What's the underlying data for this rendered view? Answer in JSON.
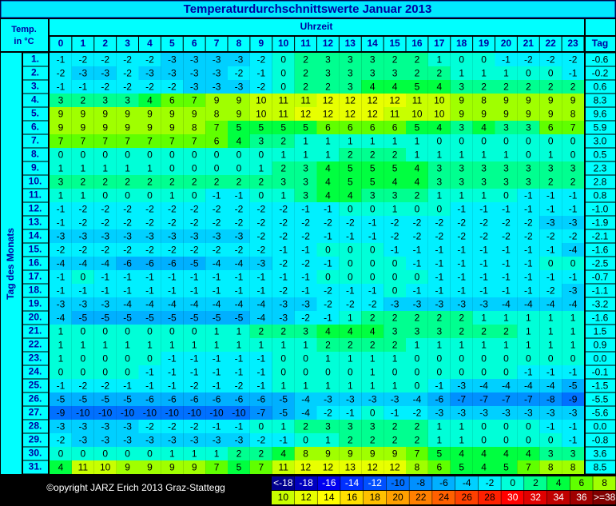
{
  "header": {
    "title": "Temperaturdurchschnittswerte Januar 2013",
    "corner": [
      "Temp.",
      "in °C"
    ],
    "hours_label": "Uhrzeit",
    "day_label": "Tag des Monats",
    "tag_label": "Tag"
  },
  "hours": [
    0,
    1,
    2,
    3,
    4,
    5,
    6,
    7,
    8,
    9,
    10,
    11,
    12,
    13,
    14,
    15,
    16,
    17,
    18,
    19,
    20,
    21,
    22,
    23
  ],
  "table": {
    "rows": [
      {
        "day": "1.",
        "values": [
          -1,
          -2,
          -2,
          -2,
          -2,
          -3,
          -3,
          -3,
          -3,
          -2,
          0,
          2,
          3,
          3,
          3,
          2,
          2,
          1,
          0,
          0,
          -1,
          -2,
          -2,
          -2
        ],
        "tag": "-0.6"
      },
      {
        "day": "2.",
        "values": [
          -2,
          -3,
          -3,
          -2,
          -3,
          -3,
          -3,
          -3,
          -2,
          -1,
          0,
          2,
          3,
          3,
          3,
          3,
          2,
          2,
          1,
          1,
          1,
          0,
          0,
          -1
        ],
        "tag": "-0.2"
      },
      {
        "day": "3.",
        "values": [
          -1,
          -1,
          -2,
          -2,
          -2,
          -2,
          -3,
          -3,
          -3,
          -2,
          0,
          2,
          2,
          3,
          4,
          4,
          5,
          4,
          3,
          2,
          2,
          2,
          2,
          2
        ],
        "tag": "0.6"
      },
      {
        "day": "4.",
        "values": [
          3,
          2,
          3,
          3,
          4,
          6,
          7,
          9,
          9,
          10,
          11,
          11,
          12,
          12,
          12,
          12,
          11,
          10,
          9,
          8,
          9,
          9,
          9,
          9
        ],
        "tag": "8.3"
      },
      {
        "day": "5.",
        "values": [
          9,
          9,
          9,
          9,
          9,
          9,
          9,
          8,
          9,
          10,
          11,
          12,
          12,
          12,
          12,
          11,
          10,
          10,
          9,
          9,
          9,
          9,
          9,
          8
        ],
        "tag": "9.6"
      },
      {
        "day": "6.",
        "values": [
          9,
          9,
          9,
          9,
          9,
          9,
          8,
          7,
          5,
          5,
          5,
          5,
          6,
          6,
          6,
          6,
          5,
          4,
          3,
          4,
          3,
          3,
          6,
          7
        ],
        "tag": "5.9"
      },
      {
        "day": "7.",
        "values": [
          7,
          7,
          7,
          7,
          7,
          7,
          7,
          6,
          4,
          3,
          2,
          1,
          1,
          1,
          1,
          1,
          1,
          0,
          0,
          0,
          0,
          0,
          0,
          0
        ],
        "tag": "3.0"
      },
      {
        "day": "8.",
        "values": [
          0,
          0,
          0,
          0,
          0,
          0,
          0,
          0,
          0,
          0,
          1,
          1,
          1,
          2,
          2,
          2,
          1,
          1,
          1,
          1,
          1,
          0,
          1,
          0
        ],
        "tag": "0.5"
      },
      {
        "day": "9.",
        "values": [
          1,
          1,
          1,
          1,
          1,
          0,
          0,
          0,
          0,
          1,
          2,
          3,
          4,
          5,
          5,
          5,
          4,
          3,
          3,
          3,
          3,
          3,
          3,
          3
        ],
        "tag": "2.3"
      },
      {
        "day": "10.",
        "values": [
          3,
          2,
          2,
          2,
          2,
          2,
          2,
          2,
          2,
          2,
          3,
          3,
          4,
          5,
          5,
          4,
          4,
          3,
          3,
          3,
          3,
          3,
          2,
          2
        ],
        "tag": "2.8"
      },
      {
        "day": "11.",
        "values": [
          1,
          1,
          0,
          0,
          0,
          1,
          0,
          -1,
          -1,
          0,
          1,
          3,
          4,
          4,
          3,
          3,
          2,
          1,
          1,
          1,
          0,
          -1,
          -1,
          -1
        ],
        "tag": "0.8"
      },
      {
        "day": "12.",
        "values": [
          -1,
          -2,
          -2,
          -2,
          -2,
          -2,
          -2,
          -2,
          -2,
          -2,
          -2,
          -1,
          -1,
          0,
          0,
          1,
          0,
          0,
          -1,
          -1,
          -1,
          -1,
          -1,
          -1
        ],
        "tag": "-1.0"
      },
      {
        "day": "13.",
        "values": [
          -1,
          -2,
          -2,
          -2,
          -2,
          -2,
          -2,
          -2,
          -2,
          -2,
          -2,
          -2,
          -2,
          -2,
          -1,
          -2,
          -2,
          -2,
          -2,
          -2,
          -2,
          -2,
          -3,
          -3
        ],
        "tag": "-1.9"
      },
      {
        "day": "14.",
        "values": [
          -3,
          -3,
          -3,
          -3,
          -3,
          -3,
          -3,
          -3,
          -3,
          -2,
          -2,
          -2,
          -1,
          -1,
          -1,
          -2,
          -2,
          -2,
          -2,
          -2,
          -2,
          -2,
          -2,
          -2
        ],
        "tag": "-2.1"
      },
      {
        "day": "15.",
        "values": [
          -2,
          -2,
          -2,
          -2,
          -2,
          -2,
          -2,
          -2,
          -2,
          -2,
          -1,
          -1,
          0,
          0,
          0,
          -1,
          -1,
          -1,
          -1,
          -1,
          -1,
          -1,
          -1,
          -4
        ],
        "tag": "-1.6"
      },
      {
        "day": "16.",
        "values": [
          -4,
          -4,
          -4,
          -6,
          -6,
          -6,
          -5,
          -4,
          -4,
          -3,
          -2,
          -2,
          -1,
          0,
          0,
          0,
          -1,
          -1,
          -1,
          -1,
          -1,
          -1,
          0,
          0
        ],
        "tag": "-2.5"
      },
      {
        "day": "17.",
        "values": [
          -1,
          0,
          -1,
          -1,
          -1,
          -1,
          -1,
          -1,
          -1,
          -1,
          -1,
          -1,
          0,
          0,
          0,
          0,
          0,
          -1,
          -1,
          -1,
          -1,
          -1,
          -1,
          -1
        ],
        "tag": "-0.7"
      },
      {
        "day": "18.",
        "values": [
          -1,
          -1,
          -1,
          -1,
          -1,
          -1,
          -1,
          -1,
          -1,
          -1,
          -2,
          -1,
          -2,
          -1,
          -1,
          0,
          -1,
          -1,
          -1,
          -1,
          -1,
          -1,
          -2,
          -3
        ],
        "tag": "-1.1"
      },
      {
        "day": "19.",
        "values": [
          -3,
          -3,
          -3,
          -4,
          -4,
          -4,
          -4,
          -4,
          -4,
          -4,
          -3,
          -3,
          -2,
          -2,
          -2,
          -3,
          -3,
          -3,
          -3,
          -3,
          -4,
          -4,
          -4,
          -4
        ],
        "tag": "-3.2"
      },
      {
        "day": "20.",
        "values": [
          -4,
          -5,
          -5,
          -5,
          -5,
          -5,
          -5,
          -5,
          -5,
          -4,
          -3,
          -2,
          -1,
          1,
          2,
          2,
          2,
          2,
          2,
          1,
          1,
          1,
          1,
          1
        ],
        "tag": "-1.6"
      },
      {
        "day": "21.",
        "values": [
          1,
          0,
          0,
          0,
          0,
          0,
          0,
          1,
          1,
          2,
          2,
          3,
          4,
          4,
          4,
          3,
          3,
          3,
          2,
          2,
          2,
          1,
          1,
          1
        ],
        "tag": "1.5"
      },
      {
        "day": "22.",
        "values": [
          1,
          1,
          1,
          1,
          1,
          1,
          1,
          1,
          1,
          1,
          1,
          1,
          2,
          2,
          2,
          2,
          1,
          1,
          1,
          1,
          1,
          1,
          1,
          1
        ],
        "tag": "0.9"
      },
      {
        "day": "23.",
        "values": [
          1,
          0,
          0,
          0,
          0,
          -1,
          -1,
          -1,
          -1,
          -1,
          0,
          0,
          1,
          1,
          1,
          1,
          0,
          0,
          0,
          0,
          0,
          0,
          0,
          0
        ],
        "tag": "0.0"
      },
      {
        "day": "24.",
        "values": [
          0,
          0,
          0,
          0,
          -1,
          -1,
          -1,
          -1,
          -1,
          -1,
          0,
          0,
          0,
          0,
          1,
          0,
          0,
          0,
          0,
          0,
          0,
          -1,
          -1,
          -1
        ],
        "tag": "-0.1"
      },
      {
        "day": "25.",
        "values": [
          -1,
          -2,
          -2,
          -1,
          -1,
          -1,
          -2,
          -1,
          -2,
          -1,
          1,
          1,
          1,
          1,
          1,
          1,
          0,
          -1,
          -3,
          -4,
          -4,
          -4,
          -4,
          -5
        ],
        "tag": "-1.5"
      },
      {
        "day": "26.",
        "values": [
          -5,
          -5,
          -5,
          -5,
          -6,
          -6,
          -6,
          -6,
          -6,
          -6,
          -5,
          -4,
          -3,
          -3,
          -3,
          -3,
          -4,
          -6,
          -7,
          -7,
          -7,
          -7,
          -8,
          -9
        ],
        "tag": "-5.5"
      },
      {
        "day": "27.",
        "values": [
          -9,
          -10,
          -10,
          -10,
          -10,
          -10,
          -10,
          -10,
          -10,
          -7,
          -5,
          -4,
          -2,
          -1,
          0,
          -1,
          -2,
          -3,
          -3,
          -3,
          -3,
          -3,
          -3,
          -3
        ],
        "tag": "-5.6"
      },
      {
        "day": "28.",
        "values": [
          -3,
          -3,
          -3,
          -3,
          -2,
          -2,
          -2,
          -1,
          -1,
          0,
          1,
          2,
          3,
          3,
          3,
          2,
          2,
          1,
          1,
          0,
          0,
          0,
          -1,
          -1
        ],
        "tag": "0.0"
      },
      {
        "day": "29.",
        "values": [
          -2,
          -3,
          -3,
          -3,
          -3,
          -3,
          -3,
          -3,
          -3,
          -2,
          -1,
          0,
          1,
          2,
          2,
          2,
          2,
          1,
          1,
          0,
          0,
          0,
          0,
          -1
        ],
        "tag": "-0.8"
      },
      {
        "day": "30.",
        "values": [
          0,
          0,
          0,
          0,
          0,
          1,
          1,
          1,
          2,
          2,
          4,
          8,
          9,
          9,
          9,
          9,
          7,
          5,
          4,
          4,
          4,
          4,
          3,
          3
        ],
        "tag": "3.6"
      },
      {
        "day": "31.",
        "values": [
          4,
          11,
          10,
          9,
          9,
          9,
          9,
          7,
          5,
          7,
          11,
          12,
          12,
          13,
          12,
          12,
          8,
          6,
          5,
          4,
          5,
          7,
          8,
          8
        ],
        "tag": "8.5"
      }
    ]
  },
  "footer": {
    "copyright": "©opyright JARZ Erich 2013 Graz-Stattegg"
  },
  "legend": [
    {
      "label": "<-18",
      "color": "#000090"
    },
    {
      "label": -18,
      "color": "#0000c0"
    },
    {
      "label": -16,
      "color": "#0000f0"
    },
    {
      "label": -14,
      "color": "#0030ff"
    },
    {
      "label": -12,
      "color": "#0050ff"
    },
    {
      "label": -10,
      "color": "#0070ff"
    },
    {
      "label": -8,
      "color": "#0090ff"
    },
    {
      "label": -6,
      "color": "#00b0ff"
    },
    {
      "label": -4,
      "color": "#00d0ff"
    },
    {
      "label": -2,
      "color": "#00f0ff"
    },
    {
      "label": 0,
      "color": "#00ffd8"
    },
    {
      "label": 2,
      "color": "#00ff90"
    },
    {
      "label": 4,
      "color": "#00ff40"
    },
    {
      "label": 6,
      "color": "#60ff00"
    },
    {
      "label": 8,
      "color": "#a0ff00"
    },
    {
      "label": 10,
      "color": "#c8ff00"
    },
    {
      "label": 12,
      "color": "#e8ff00"
    },
    {
      "label": 14,
      "color": "#ffff00"
    },
    {
      "label": 16,
      "color": "#ffe000"
    },
    {
      "label": 18,
      "color": "#ffc000"
    },
    {
      "label": 20,
      "color": "#ffa000"
    },
    {
      "label": 22,
      "color": "#ff8000"
    },
    {
      "label": 24,
      "color": "#ff6000"
    },
    {
      "label": 26,
      "color": "#ff4000"
    },
    {
      "label": 28,
      "color": "#ff2000"
    },
    {
      "label": 30,
      "color": "#ff0000"
    },
    {
      "label": 32,
      "color": "#e00000"
    },
    {
      "label": 34,
      "color": "#c00000"
    },
    {
      "label": 36,
      "color": "#a00000"
    },
    {
      "label": ">=38",
      "color": "#800000"
    }
  ]
}
